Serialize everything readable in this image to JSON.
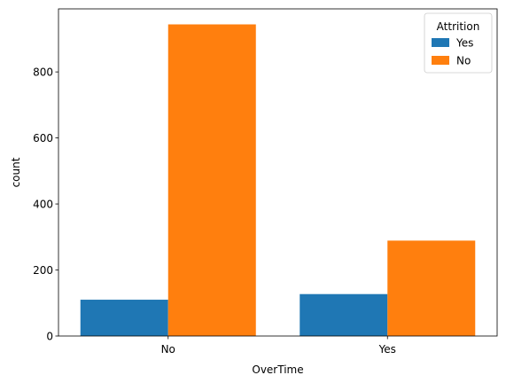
{
  "chart_data": {
    "type": "bar",
    "title": "",
    "xlabel": "OverTime",
    "ylabel": "count",
    "categories": [
      "No",
      "Yes"
    ],
    "series": [
      {
        "name": "Yes",
        "values": [
          110,
          127
        ],
        "color": "#1f77b4"
      },
      {
        "name": "No",
        "values": [
          944,
          289
        ],
        "color": "#ff7f0e"
      }
    ],
    "ylim": [
      0,
      991
    ],
    "yticks": [
      0,
      200,
      400,
      600,
      800
    ],
    "legend": {
      "title": "Attrition",
      "placement": "top-right"
    },
    "grid": false
  }
}
